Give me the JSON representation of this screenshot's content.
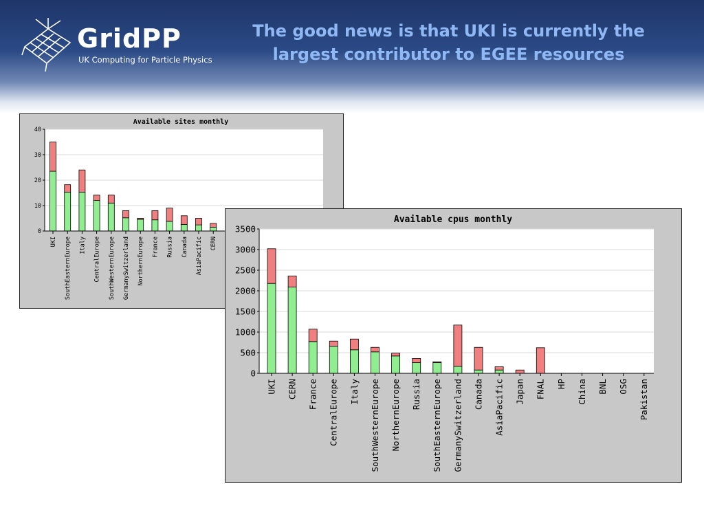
{
  "header": {
    "brand": "GridPP",
    "subtitle": "UK Computing for Particle Physics",
    "title_line1": "The good news is that UKI is currently the",
    "title_line2": "largest contributor to EGEE resources"
  },
  "colors": {
    "green": "#90ee90",
    "red": "#f08080",
    "plot_bg": "#ffffff",
    "frame_bg": "#c8c8c8"
  },
  "chart_data": [
    {
      "type": "bar",
      "stacked": true,
      "title": "Available sites monthly",
      "categories": [
        "UKI",
        "SouthEasternEurope",
        "Italy",
        "CentralEurope",
        "SouthWesternEurope",
        "GermanySwitzerland",
        "NorthernEurope",
        "France",
        "Russia",
        "Canada",
        "AsiaPacific",
        "CERN"
      ],
      "series": [
        {
          "color": "#90ee90",
          "values": [
            23.5,
            15.3,
            15.3,
            12,
            11,
            5.2,
            4.6,
            4.4,
            3.8,
            2.6,
            2.4,
            1.5
          ]
        },
        {
          "color": "#f08080",
          "values": [
            11.5,
            2.9,
            8.7,
            2.1,
            3.1,
            2.8,
            0.4,
            3.6,
            5.2,
            3.4,
            2.6,
            1.5
          ]
        }
      ],
      "yticks": [
        0,
        10,
        20,
        30,
        40
      ],
      "ylim": [
        0,
        40
      ],
      "grid": true
    },
    {
      "type": "bar",
      "stacked": true,
      "title": "Available cpus monthly",
      "categories": [
        "UKI",
        "CERN",
        "France",
        "CentralEurope",
        "Italy",
        "SouthWesternEurope",
        "NorthernEurope",
        "Russia",
        "SouthEasternEurope",
        "GermanySwitzerland",
        "Canada",
        "AsiaPacific",
        "Japan",
        "FNAL",
        "HP",
        "China",
        "BNL",
        "OSG",
        "Pakistan"
      ],
      "series": [
        {
          "color": "#90ee90",
          "values": [
            2180,
            2090,
            770,
            660,
            570,
            520,
            420,
            260,
            260,
            170,
            80,
            80,
            0,
            0,
            0,
            0,
            0,
            0,
            0
          ]
        },
        {
          "color": "#f08080",
          "values": [
            840,
            270,
            300,
            120,
            260,
            110,
            70,
            100,
            20,
            1000,
            550,
            80,
            80,
            620,
            0,
            0,
            0,
            0,
            0
          ]
        }
      ],
      "yticks": [
        0,
        500,
        1000,
        1500,
        2000,
        2500,
        3000,
        3500
      ],
      "ylim": [
        0,
        3500
      ],
      "grid": true
    }
  ]
}
